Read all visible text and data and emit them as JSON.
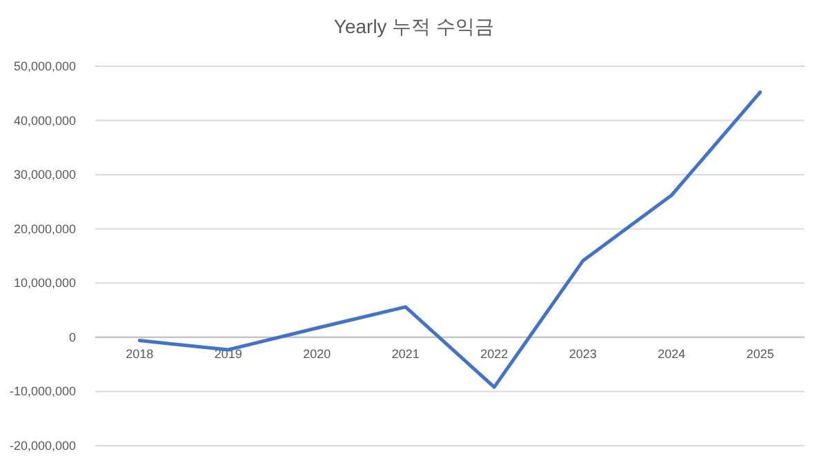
{
  "chart_data": {
    "type": "line",
    "title": "Yearly 누적 수익금",
    "categories": [
      "2018",
      "2019",
      "2020",
      "2021",
      "2022",
      "2023",
      "2024",
      "2025"
    ],
    "series": [
      {
        "color": "#4472c4",
        "values": [
          -600000,
          -2300000,
          1700000,
          5600000,
          -9200000,
          14100000,
          26200000,
          45200000
        ]
      }
    ],
    "ylim": [
      -20000000,
      50000000
    ],
    "yticks": [
      {
        "value": -20000000,
        "label": "-20,000,000"
      },
      {
        "value": -10000000,
        "label": "-10,000,000"
      },
      0,
      {
        "value": 10000000,
        "label": "10,000,000"
      },
      {
        "value": 20000000,
        "label": "20,000,000"
      },
      {
        "value": 30000000,
        "label": "30,000,000"
      },
      {
        "value": 40000000,
        "label": "40,000,000"
      },
      {
        "value": 50000000,
        "label": "50,000,000"
      }
    ],
    "grid": "y",
    "line_style": "solid"
  }
}
